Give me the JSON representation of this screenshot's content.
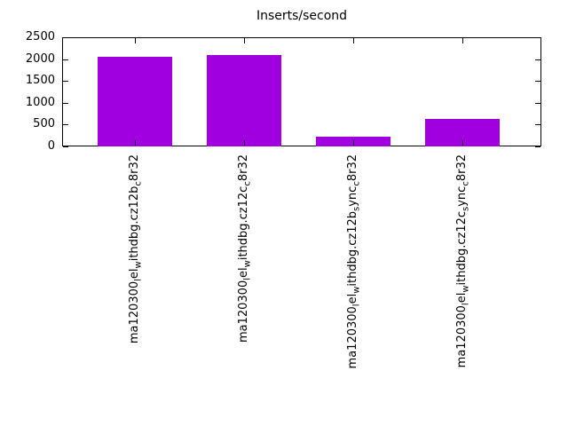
{
  "chart_data": {
    "type": "bar",
    "title": "Inserts/second",
    "categories": [
      {
        "plain": "ma120300lelwithdbg.cz12bc8r32",
        "segments": [
          {
            "t": "ma120300"
          },
          {
            "t": "l",
            "sub": true
          },
          {
            "t": "el"
          },
          {
            "t": "w",
            "sub": true
          },
          {
            "t": "ithdbg.cz12b"
          },
          {
            "t": "c",
            "sub": true
          },
          {
            "t": "8r32"
          }
        ]
      },
      {
        "plain": "ma120300lelwithdbg.cz12cc8r32",
        "segments": [
          {
            "t": "ma120300"
          },
          {
            "t": "l",
            "sub": true
          },
          {
            "t": "el"
          },
          {
            "t": "w",
            "sub": true
          },
          {
            "t": "ithdbg.cz12c"
          },
          {
            "t": "c",
            "sub": true
          },
          {
            "t": "8r32"
          }
        ]
      },
      {
        "plain": "ma120300lelwithdbg.cz12bsyncc8r32",
        "segments": [
          {
            "t": "ma120300"
          },
          {
            "t": "l",
            "sub": true
          },
          {
            "t": "el"
          },
          {
            "t": "w",
            "sub": true
          },
          {
            "t": "ithdbg.cz12b"
          },
          {
            "t": "s",
            "sub": true
          },
          {
            "t": "ync"
          },
          {
            "t": "c",
            "sub": true
          },
          {
            "t": "8r32"
          }
        ]
      },
      {
        "plain": "ma120300lelwithdbg.cz12csyncc8r32",
        "segments": [
          {
            "t": "ma120300"
          },
          {
            "t": "l",
            "sub": true
          },
          {
            "t": "el"
          },
          {
            "t": "w",
            "sub": true
          },
          {
            "t": "ithdbg.cz12c"
          },
          {
            "t": "s",
            "sub": true
          },
          {
            "t": "ync"
          },
          {
            "t": "c",
            "sub": true
          },
          {
            "t": "8r32"
          }
        ]
      }
    ],
    "values": [
      2060,
      2090,
      220,
      620
    ],
    "xlabel": "",
    "ylabel": "",
    "ylim": [
      0,
      2500
    ],
    "yticks": [
      0,
      500,
      1000,
      1500,
      2000,
      2500
    ],
    "bar_color": "#a000e0",
    "grid": false,
    "legend": "none"
  }
}
